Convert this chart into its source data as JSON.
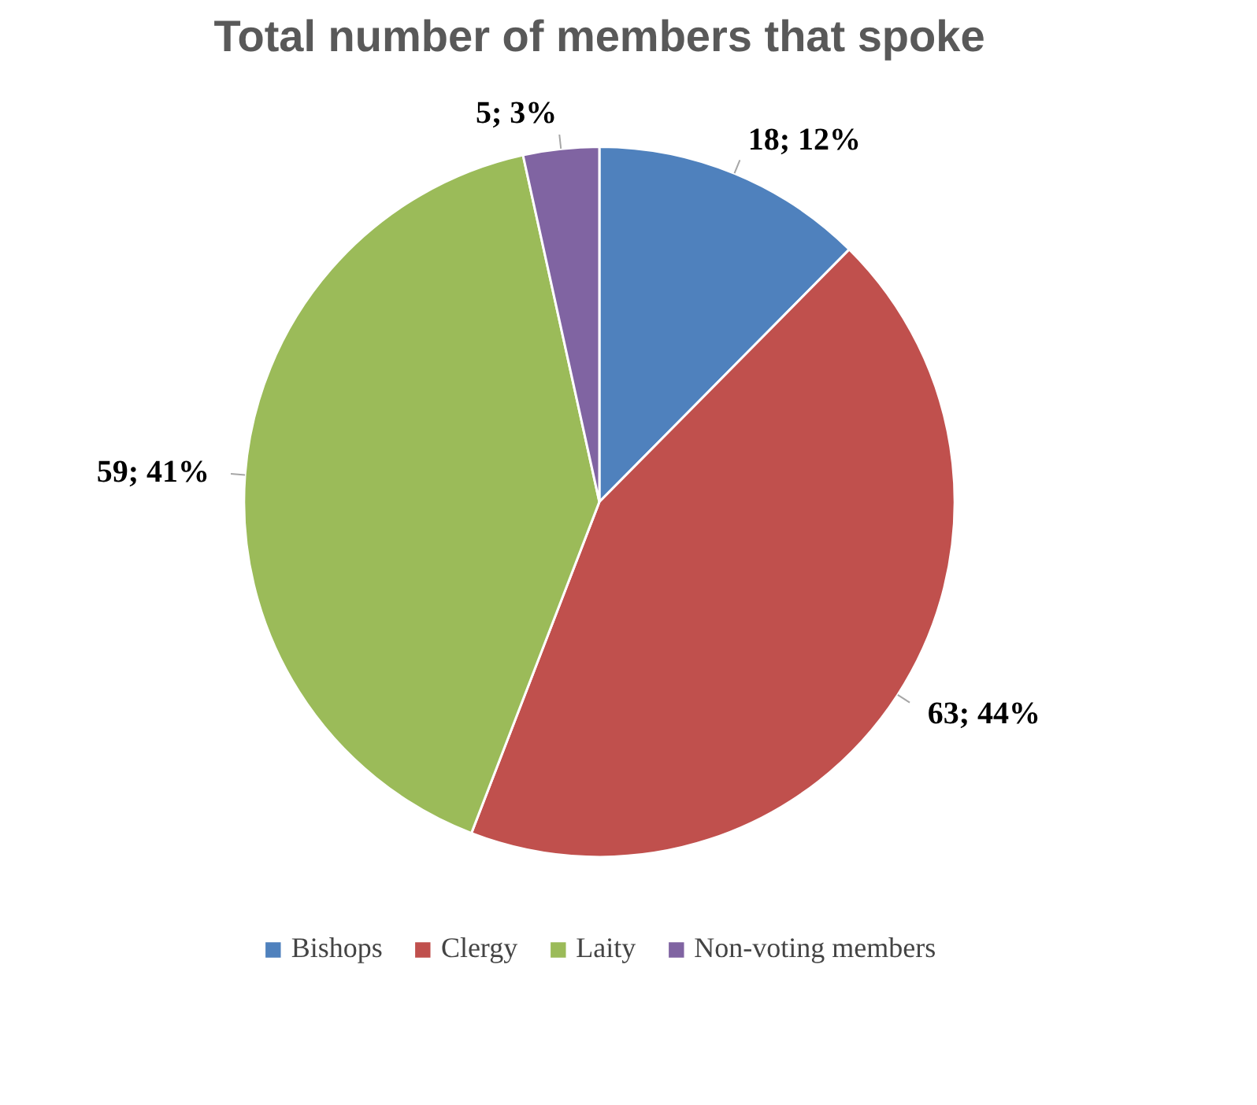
{
  "chart_data": {
    "type": "pie",
    "title": "Total number of members that spoke",
    "categories": [
      "Bishops",
      "Clergy",
      "Laity",
      "Non-voting members"
    ],
    "values": [
      18,
      63,
      59,
      5
    ],
    "colors": [
      "#4f81bd",
      "#c0504d",
      "#9bbb59",
      "#8064a2"
    ],
    "value_labels": [
      "18; 12%",
      "63; 44%",
      "59; 41%",
      "5; 3%"
    ],
    "legend": "bottom"
  }
}
